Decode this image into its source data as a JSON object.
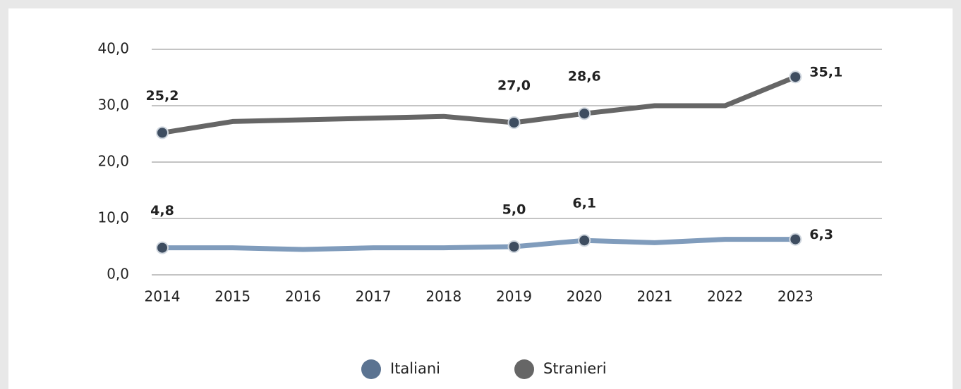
{
  "chart_data": {
    "type": "line",
    "categories": [
      "2014",
      "2015",
      "2016",
      "2017",
      "2018",
      "2019",
      "2020",
      "2021",
      "2022",
      "2023"
    ],
    "series": [
      {
        "name": "Italiani",
        "color": "#5b7391",
        "line_color": "#809cbc",
        "values": [
          4.8,
          4.8,
          4.5,
          4.8,
          4.8,
          5.0,
          6.1,
          5.7,
          6.3,
          6.3
        ],
        "value_labels": [
          "4,8",
          null,
          null,
          null,
          null,
          "5,0",
          "6,1",
          null,
          null,
          "6,3"
        ]
      },
      {
        "name": "Stranieri",
        "color": "#666666",
        "line_color": "#666666",
        "values": [
          25.2,
          27.2,
          27.5,
          27.8,
          28.1,
          27.0,
          28.6,
          30.0,
          30.0,
          35.1
        ],
        "value_labels": [
          "25,2",
          null,
          null,
          null,
          null,
          "27,0",
          "28,6",
          null,
          null,
          "35,1"
        ]
      }
    ],
    "ylim": [
      0,
      40
    ],
    "yticks": [
      {
        "value": 0,
        "label": "0,0"
      },
      {
        "value": 10,
        "label": "10,0"
      },
      {
        "value": 20,
        "label": "20,0"
      },
      {
        "value": 30,
        "label": "30,0"
      },
      {
        "value": 40,
        "label": "40,0"
      }
    ],
    "grid": true,
    "legend": "bottom"
  }
}
